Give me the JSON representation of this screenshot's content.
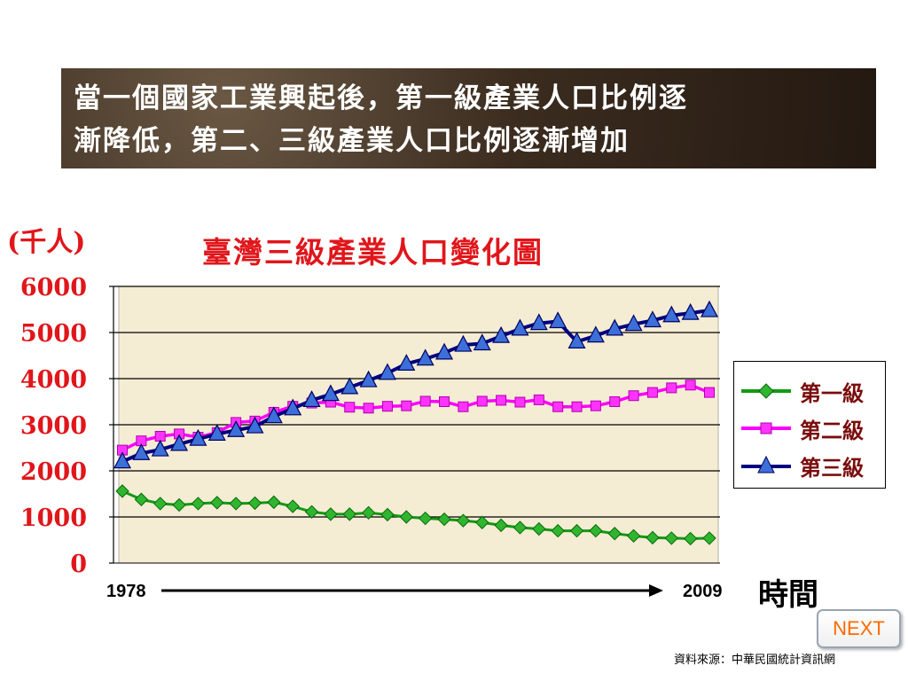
{
  "banner": {
    "line1": "當一個國家工業興起後，第一級產業人口比例逐",
    "line2": "漸降低，第二、三級產業人口比例逐漸增加"
  },
  "unit_label": "(千人)",
  "x_start_label": "1978",
  "x_end_label": "2009",
  "time_label": "時間",
  "next_label": "NEXT",
  "source_label": "資料來源：中華民國統計資訊網",
  "colors": {
    "primary": "#129a12",
    "secondary": "#ff00ff",
    "tertiary": "#000080",
    "tertiary_marker": "#3d6fd9",
    "plot_bg": "#f5ecd4",
    "title_red": "#e0161b"
  },
  "chart_data": {
    "type": "line",
    "title": "臺灣三級產業人口變化圖",
    "ylim": [
      0,
      6000
    ],
    "yticks": [
      "6000",
      "5000",
      "4000",
      "3000",
      "2000",
      "1000",
      "0"
    ],
    "grid": true,
    "legend_position": "right",
    "x": [
      1978,
      1979,
      1980,
      1981,
      1982,
      1983,
      1984,
      1985,
      1986,
      1987,
      1988,
      1989,
      1990,
      1991,
      1992,
      1993,
      1994,
      1995,
      1996,
      1997,
      1998,
      1999,
      2000,
      2001,
      2002,
      2003,
      2004,
      2005,
      2006,
      2007,
      2008,
      2009
    ],
    "series": [
      {
        "name": "第一級",
        "marker": "diamond",
        "values": [
          1560,
          1380,
          1290,
          1260,
          1290,
          1310,
          1290,
          1300,
          1320,
          1230,
          1110,
          1060,
          1060,
          1090,
          1050,
          1000,
          970,
          950,
          920,
          880,
          820,
          770,
          740,
          700,
          700,
          700,
          640,
          590,
          550,
          540,
          530,
          540
        ]
      },
      {
        "name": "第二級",
        "marker": "square",
        "values": [
          2450,
          2650,
          2750,
          2800,
          2730,
          2830,
          3050,
          3080,
          3270,
          3400,
          3470,
          3490,
          3380,
          3360,
          3400,
          3410,
          3510,
          3500,
          3390,
          3510,
          3530,
          3490,
          3540,
          3390,
          3390,
          3410,
          3500,
          3630,
          3700,
          3800,
          3860,
          3700
        ]
      },
      {
        "name": "第三級",
        "marker": "triangle",
        "values": [
          2200,
          2380,
          2460,
          2580,
          2690,
          2800,
          2880,
          2960,
          3180,
          3350,
          3530,
          3660,
          3810,
          3960,
          4120,
          4320,
          4430,
          4560,
          4730,
          4760,
          4920,
          5080,
          5200,
          5240,
          4800,
          4930,
          5080,
          5180,
          5260,
          5370,
          5420,
          5480
        ]
      }
    ]
  }
}
